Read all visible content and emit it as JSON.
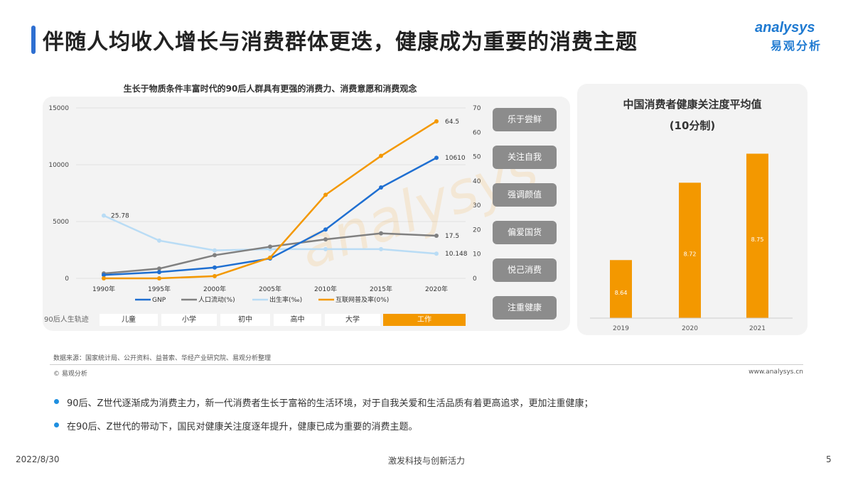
{
  "header": {
    "title": "伴随人均收入增长与消费群体更迭，健康成为重要的消费主题",
    "logo_en": "analysys",
    "logo_cn": "易观分析"
  },
  "colors": {
    "accent": "#2e6fd1",
    "orange": "#f39800",
    "gnp": "#1f6fd1",
    "mobility": "#808080",
    "birth": "#b9dcf5"
  },
  "tags": [
    "乐于尝鲜",
    "关注自我",
    "强调颜值",
    "偏爱国货",
    "悦己消费",
    "注重健康"
  ],
  "life_track": {
    "label": "90后人生轨迹",
    "stages": [
      "儿童",
      "小学",
      "初中",
      "高中",
      "大学",
      "工作"
    ]
  },
  "chart_data": [
    {
      "type": "line",
      "title": "生长于物质条件丰富时代的90后人群具有更强的消费力、消费意愿和消费观念",
      "categories": [
        "1990年",
        "1995年",
        "2000年",
        "2005年",
        "2010年",
        "2015年",
        "2020年"
      ],
      "ylim_left": [
        0,
        15000
      ],
      "yticks_left": [
        "0",
        "5000",
        "10000",
        "15000"
      ],
      "ylim_right": [
        0,
        70
      ],
      "yticks_right": [
        "0",
        "10",
        "20",
        "30",
        "40",
        "50",
        "60",
        "70"
      ],
      "legend_position": "bottom",
      "grid": true,
      "series": [
        {
          "name": "GNP",
          "axis": "left",
          "values": [
            300,
            550,
            950,
            1750,
            4300,
            8000,
            10610
          ],
          "end_label": "10610"
        },
        {
          "name": "人口流动(%)",
          "axis": "right",
          "values": [
            2,
            4,
            9.5,
            13,
            16,
            18.5,
            17.5
          ],
          "end_label": "17.5"
        },
        {
          "name": "出生率(‰)",
          "axis": "right",
          "values": [
            25.78,
            15.5,
            11.5,
            12,
            12,
            12,
            10.148
          ],
          "start_label": "25.78",
          "end_label": "10.148"
        },
        {
          "name": "互联网普及率(0%)",
          "axis": "right",
          "values": [
            0,
            0,
            0.9,
            8.5,
            34.3,
            50.3,
            64.5
          ],
          "end_label": "64.5"
        }
      ]
    },
    {
      "type": "bar",
      "title": "中国消费者健康关注度平均值",
      "subtitle": "(10分制)",
      "categories": [
        "2019",
        "2020",
        "2021"
      ],
      "values": [
        8.64,
        8.72,
        8.75
      ],
      "labels": [
        "8.64",
        "8.72",
        "8.75"
      ],
      "ylim": [
        8.58,
        8.8
      ]
    }
  ],
  "footer": {
    "source": "数据来源：国家统计局、公开资料、益普索、华经产业研究院、易观分析整理",
    "copyright": "© 易观分析",
    "website": "www.analysys.cn",
    "bullets": [
      "90后、Z世代逐渐成为消费主力，新一代消费者生长于富裕的生活环境，对于自我关爱和生活品质有着更高追求，更加注重健康；",
      "在90后、Z世代的带动下，国民对健康关注度逐年提升，健康已成为重要的消费主题。"
    ],
    "date": "2022/8/30",
    "slogan": "激发科技与创新活力",
    "page": "5"
  }
}
